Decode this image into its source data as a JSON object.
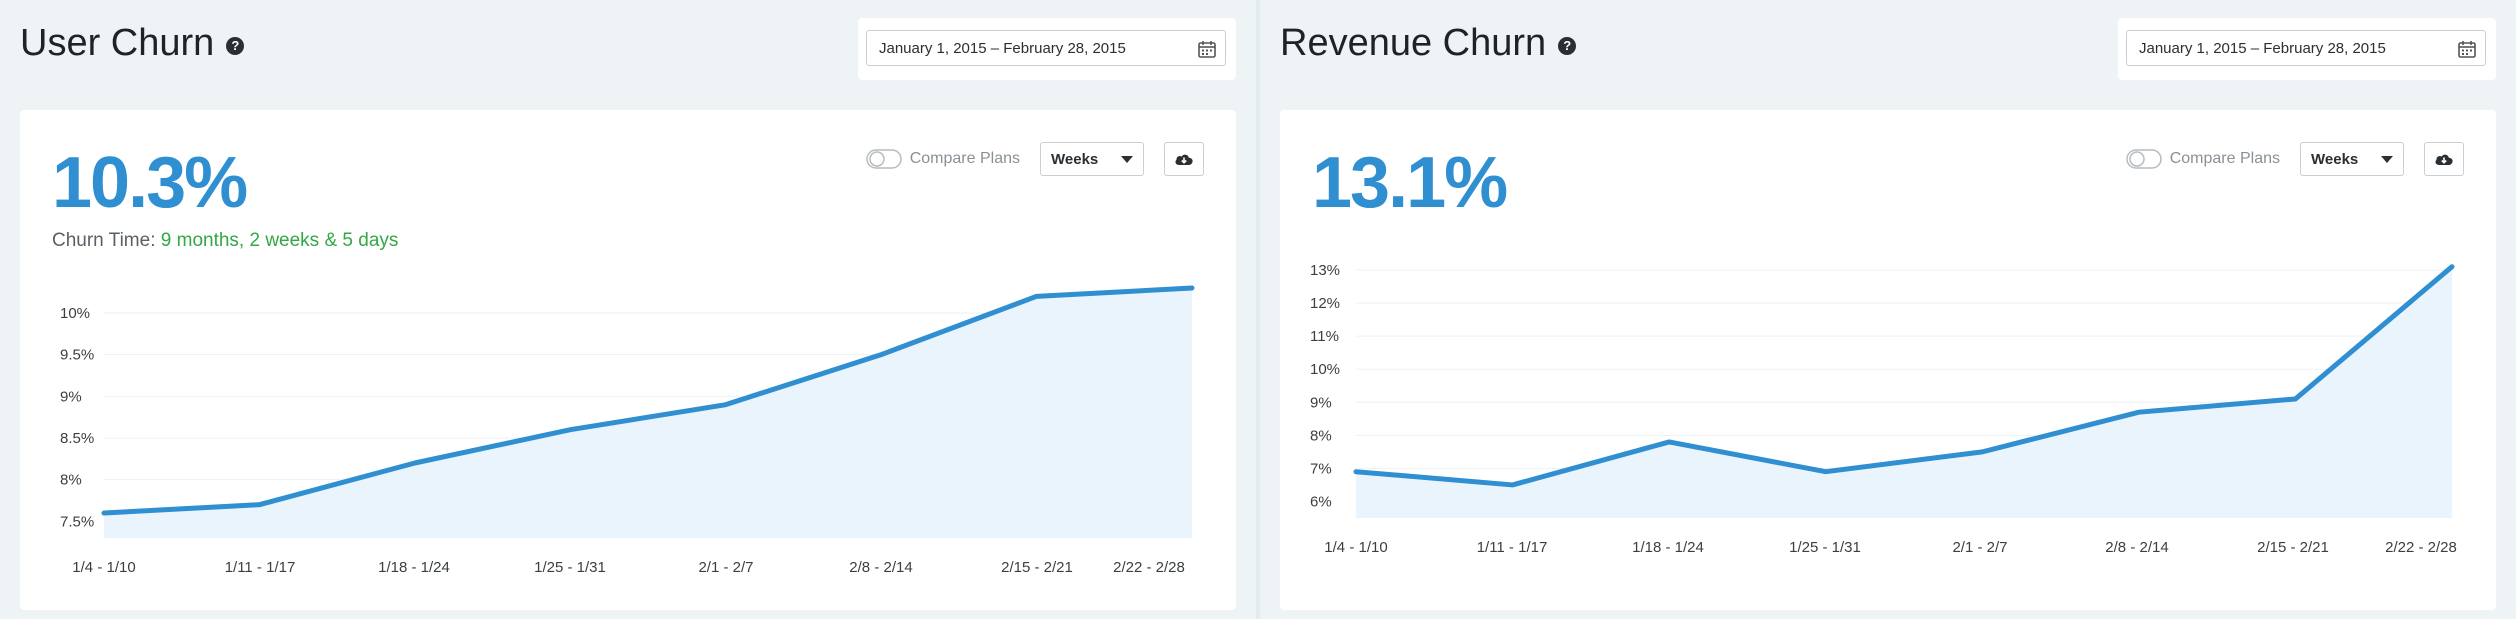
{
  "panels": [
    {
      "id": "user",
      "title": "User Churn",
      "help_glyph": "?",
      "date_range": "January  1, 2015 – February 28, 2015",
      "value": "10.3%",
      "churn_time_label": "Churn Time:",
      "churn_time_value": "9 months, 2 weeks & 5 days",
      "compare_label": "Compare Plans",
      "period_select": "Weeks",
      "icons": {
        "help": "help-circle-icon",
        "calendar": "calendar-icon",
        "compare": "toggle-icon",
        "download": "cloud-download-icon"
      }
    },
    {
      "id": "rev",
      "title": "Revenue Churn",
      "help_glyph": "?",
      "date_range": "January  1, 2015 – February 28, 2015",
      "value": "13.1%",
      "compare_label": "Compare Plans",
      "period_select": "Weeks",
      "icons": {
        "help": "help-circle-icon",
        "calendar": "calendar-icon",
        "compare": "toggle-icon",
        "download": "cloud-download-icon"
      }
    }
  ],
  "colors": {
    "accent": "#2f8fd0",
    "fill": "#eaf4fc",
    "green": "#33a845",
    "grid": "#eef1f3"
  },
  "chart_data": [
    {
      "type": "area",
      "categories": [
        "1/4 - 1/10",
        "1/11 - 1/17",
        "1/18 - 1/24",
        "1/25 - 1/31",
        "2/1 - 2/7",
        "2/8 - 2/14",
        "2/15 - 2/21",
        "2/22 - 2/28"
      ],
      "values": [
        7.6,
        7.7,
        8.2,
        8.6,
        8.9,
        9.5,
        10.2,
        10.3
      ],
      "yticks": [
        7.5,
        8,
        8.5,
        9,
        9.5,
        10
      ],
      "ytick_labels": [
        "7.5%",
        "8%",
        "8.5%",
        "9%",
        "9.5%",
        "10%"
      ],
      "ylim": [
        7.3,
        10.3
      ],
      "grid": true
    },
    {
      "type": "area",
      "categories": [
        "1/4 - 1/10",
        "1/11 - 1/17",
        "1/18 - 1/24",
        "1/25 - 1/31",
        "2/1 - 2/7",
        "2/8 - 2/14",
        "2/15 - 2/21",
        "2/22 - 2/28"
      ],
      "values": [
        6.9,
        6.5,
        7.8,
        6.9,
        7.5,
        8.7,
        9.1,
        13.1
      ],
      "yticks": [
        6,
        7,
        8,
        9,
        10,
        11,
        12,
        13
      ],
      "ytick_labels": [
        "6%",
        "7%",
        "8%",
        "9%",
        "10%",
        "11%",
        "12%",
        "13%"
      ],
      "ylim": [
        5.5,
        13
      ],
      "grid": true
    }
  ]
}
